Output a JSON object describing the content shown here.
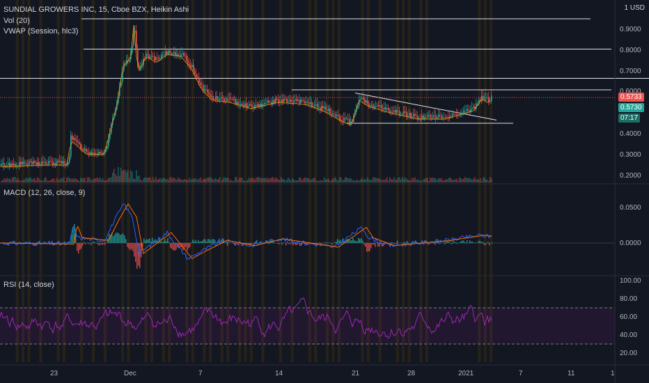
{
  "header": {
    "title": "SUNDIAL GROWERS INC, 15, Cboe BZX, Heikin Ashi",
    "vol": "Vol (20)",
    "vwap": "VWAP (Session, hlc3)"
  },
  "currency": {
    "one": "1",
    "code": "USD"
  },
  "price_axis": [
    "0.9000",
    "0.8000",
    "0.7000",
    "0.6000",
    "0.4000",
    "0.3000",
    "0.2000"
  ],
  "price_badges": {
    "last": "0.5733",
    "vwap": "0.5730",
    "timer": "07:17"
  },
  "macd": {
    "label": "MACD (12, 26, close, 9)",
    "ticks": [
      "0.0500",
      "0.0000"
    ]
  },
  "rsi": {
    "label": "RSI (14, close)",
    "ticks": [
      "100.00",
      "80.00",
      "60.00",
      "40.00",
      "20.00"
    ]
  },
  "time_axis": [
    "23",
    "Dec",
    "7",
    "14",
    "21",
    "28",
    "2021",
    "7",
    "11",
    "1"
  ],
  "colors": {
    "bg": "#131722",
    "up": "#26a69a",
    "down": "#ef5350",
    "rsi": "#9c27b0",
    "macd": "#2962ff",
    "signal": "#ff6d00",
    "accent": "#2962ff"
  },
  "chart_data": {
    "type": "candlestick",
    "ylim": [
      0.16,
      1.0
    ],
    "levels": [
      0.95,
      0.805,
      0.665,
      0.61,
      0.45
    ],
    "last_price": 0.5733
  }
}
